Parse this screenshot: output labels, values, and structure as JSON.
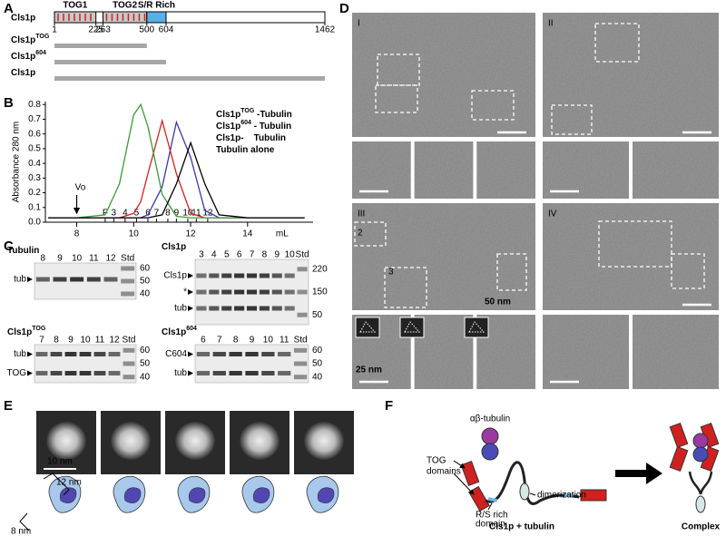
{
  "panels": {
    "A": {
      "letter": "A",
      "protein": "Cls1p",
      "domains": [
        {
          "label": "TOG1",
          "start": 1,
          "end": 225
        },
        {
          "label": "TOG2",
          "start": 263,
          "end": 500
        },
        {
          "label": "S/R Rich",
          "start": 500,
          "end": 604
        }
      ],
      "positions": [
        1,
        225,
        263,
        500,
        604,
        1462
      ],
      "constructs": [
        {
          "name": "Cls1p",
          "sup": "TOG",
          "color": "#3a3aa8",
          "end": 500
        },
        {
          "name": "Cls1p",
          "sup": "604",
          "color": "#d02020",
          "end": 604
        },
        {
          "name": "Cls1p",
          "color": "#3a9a3a",
          "end": 1462
        }
      ]
    },
    "B": {
      "letter": "B",
      "chart_data": {
        "type": "line",
        "ylabel": "Absorbance 280 nm",
        "xlabel": "mL",
        "xlim": [
          6.9,
          16.3
        ],
        "ylim": [
          0,
          0.82
        ],
        "xticks": [
          8,
          10,
          12,
          14
        ],
        "yticks": [
          {
            "value": 0,
            "label": "0.0"
          },
          0.1,
          0.2,
          0.3,
          0.4,
          0.5,
          0.6,
          0.7,
          0.8
        ],
        "annotation": {
          "label": "Vo",
          "x": 8
        },
        "fractions": {
          "labels": [
            "F",
            "3",
            "4",
            "5",
            "6",
            "7",
            "8",
            "9",
            "10",
            "11",
            "12"
          ],
          "x": [
            9.0,
            9.3,
            9.7,
            10.1,
            10.5,
            10.8,
            11.2,
            11.5,
            11.9,
            12.2,
            12.6
          ]
        },
        "x": [
          7,
          8,
          9,
          9.5,
          10,
          10.25,
          10.5,
          11,
          11.5,
          12,
          12.5,
          13,
          14,
          15,
          16
        ],
        "series": [
          {
            "name": "Cls1p",
            "sup": "TOG",
            "suffix": " -Tubulin",
            "color": "#3a3aa8",
            "values": [
              0.03,
              0.03,
              0.03,
              0.03,
              0.03,
              0.03,
              0.05,
              0.24,
              0.68,
              0.44,
              0.08,
              0.03,
              0.03,
              0.03,
              0.03
            ]
          },
          {
            "name": "Cls1p",
            "sup": "604",
            "suffix": " - Tubulin",
            "color": "#d02020",
            "values": [
              0.03,
              0.03,
              0.03,
              0.03,
              0.06,
              0.14,
              0.33,
              0.69,
              0.33,
              0.06,
              0.03,
              0.03,
              0.03,
              0.03,
              0.03
            ]
          },
          {
            "name": "Cls1p-",
            "suffix": "    Tubulin",
            "color": "#3a9a3a",
            "values": [
              0.03,
              0.03,
              0.05,
              0.26,
              0.73,
              0.8,
              0.65,
              0.19,
              0.04,
              0.03,
              0.03,
              0.03,
              0.03,
              0.03,
              0.03
            ]
          },
          {
            "name": "Tubulin alone",
            "color": "#000000",
            "values": [
              0.03,
              0.03,
              0.03,
              0.03,
              0.03,
              0.03,
              0.03,
              0.05,
              0.26,
              0.54,
              0.26,
              0.05,
              0.03,
              0.03,
              0.03
            ]
          }
        ]
      }
    },
    "C": {
      "letter": "C",
      "gels": [
        {
          "title": "Tubulin",
          "color": "#000000",
          "lanes": [
            "8",
            "9",
            "10",
            "11",
            "12",
            "Std"
          ],
          "mw": [
            "60",
            "50",
            "40"
          ],
          "bands": [
            "tub"
          ]
        },
        {
          "title": "Cls1p",
          "color": "#3a9a3a",
          "lanes": [
            "3",
            "4",
            "5",
            "6",
            "7",
            "8",
            "9",
            "10",
            "Std"
          ],
          "mw": [
            "220",
            "150",
            "50"
          ],
          "bands": [
            "Cls1p",
            "*",
            "tub"
          ]
        },
        {
          "title": "Cls1p",
          "sup": "TOG",
          "color": "#3a3aa8",
          "lanes": [
            "7",
            "8",
            "9",
            "10",
            "11",
            "12",
            "Std"
          ],
          "mw": [
            "60",
            "50",
            "40"
          ],
          "bands": [
            "tub",
            "TOG"
          ]
        },
        {
          "title": "Cls1p",
          "sup": "604",
          "color": "#d02020",
          "lanes": [
            "6",
            "7",
            "8",
            "9",
            "10",
            "11",
            "Std"
          ],
          "mw": [
            "60",
            "50",
            "40"
          ],
          "bands": [
            "C604",
            "tub"
          ]
        }
      ]
    },
    "D": {
      "letter": "D",
      "micrographs": [
        {
          "label": "I"
        },
        {
          "label": "II"
        },
        {
          "label": "III",
          "insets": [
            "2",
            "3"
          ]
        },
        {
          "label": "IV"
        }
      ],
      "scale_labels": [
        "50 nm",
        "25 nm"
      ]
    },
    "E": {
      "letter": "E",
      "scale_label": "10 nm",
      "dims": [
        "12 nm",
        "8 nm"
      ]
    },
    "F": {
      "letter": "F",
      "tubulin": "αβ-tubulin",
      "tog": [
        "TOG",
        "domains"
      ],
      "rs": [
        "R/S rich",
        "domain"
      ],
      "dimerization": "dimerization",
      "left": "Cls1p + tubulin",
      "right": "Complex"
    }
  }
}
